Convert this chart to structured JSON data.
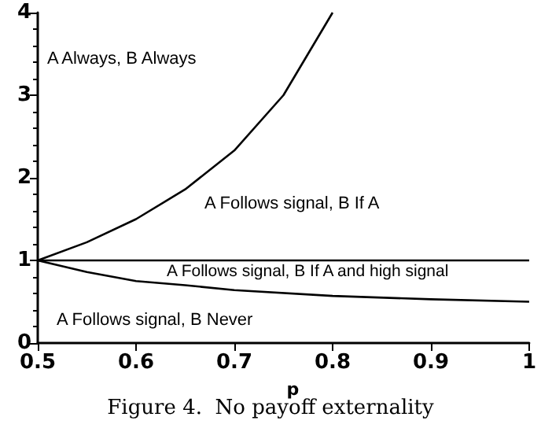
{
  "chart_data": {
    "type": "line",
    "title": "Figure 4.  No payoff externality",
    "xlabel": "p",
    "series": [
      {
        "color": "#000000",
        "x": [
          0.5,
          0.55,
          0.6,
          0.65,
          0.7,
          0.75,
          0.8
        ],
        "values": [
          1,
          1.22,
          1.5,
          1.86,
          2.33,
          3,
          4
        ]
      },
      {
        "color": "#000000",
        "x": [
          0.5,
          1
        ],
        "values": [
          1,
          1
        ]
      },
      {
        "color": "#000000",
        "x": [
          0.5,
          0.55,
          0.6,
          0.65,
          0.7,
          0.8,
          0.9,
          1
        ],
        "values": [
          1,
          0.86,
          0.75,
          0.7,
          0.64,
          0.57,
          0.53,
          0.5
        ]
      }
    ],
    "xlim": [
      0.5,
      1
    ],
    "xticks": [
      0.5,
      0.6,
      0.7,
      0.8,
      0.9,
      1
    ],
    "ylim": [
      0,
      4
    ],
    "yticks": [
      0,
      1,
      2,
      3,
      4
    ],
    "grid": false,
    "marker": "none",
    "line_style": "solid",
    "annotations": [
      "A Always, B Always",
      "A Follows signal, B If A",
      "A Follows signal, B If A and high signal",
      "A Follows signal, B Never"
    ]
  }
}
